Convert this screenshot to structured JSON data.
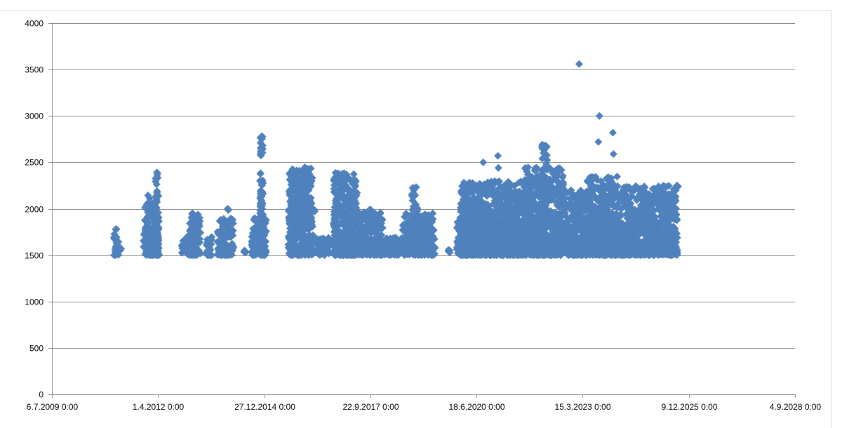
{
  "chart_data": {
    "type": "scatter",
    "title": "",
    "xlabel": "",
    "ylabel": "",
    "x_tick_labels": [
      "6.7.2009 0:00",
      "1.4.2012 0:00",
      "27.12.2014 0:00",
      "22.9.2017 0:00",
      "18.6.2020 0:00",
      "15.3.2023 0:00",
      "9.12.2025 0:00",
      "4.9.2028 0:00"
    ],
    "x_tick_dates": [
      "2009-07-06",
      "2012-04-01",
      "2014-12-27",
      "2017-09-22",
      "2020-06-18",
      "2023-03-15",
      "2025-12-09",
      "2028-09-04"
    ],
    "xlim": [
      "2009-07-06",
      "2028-09-04"
    ],
    "y_tick_labels": [
      "0",
      "500",
      "1000",
      "1500",
      "2000",
      "2500",
      "3000",
      "3500",
      "4000"
    ],
    "ylim": [
      0,
      4000
    ],
    "grid": "horizontal",
    "legend": "none",
    "marker": "diamond",
    "marker_color": "#4f81bd",
    "clusters": [
      {
        "start": "2011-02-10",
        "end": "2011-03-25",
        "min": 1500,
        "max": 1800
      },
      {
        "start": "2011-04-05",
        "end": "2011-04-20",
        "min": 1550,
        "max": 1580
      },
      {
        "start": "2011-11-15",
        "end": "2012-04-10",
        "min": 1500,
        "max": 2150
      },
      {
        "start": "2012-02-25",
        "end": "2012-04-05",
        "min": 1600,
        "max": 2400
      },
      {
        "start": "2012-11-10",
        "end": "2013-02-20",
        "min": 1500,
        "max": 1700
      },
      {
        "start": "2013-01-15",
        "end": "2013-05-10",
        "min": 1500,
        "max": 1950
      },
      {
        "start": "2013-06-25",
        "end": "2013-08-20",
        "min": 1500,
        "max": 1700
      },
      {
        "start": "2013-10-10",
        "end": "2014-03-15",
        "min": 1500,
        "max": 1900
      },
      {
        "start": "2014-01-15",
        "end": "2014-01-30",
        "min": 1800,
        "max": 2150
      },
      {
        "start": "2014-06-20",
        "end": "2014-07-05",
        "min": 1530,
        "max": 1560
      },
      {
        "start": "2014-08-25",
        "end": "2015-01-15",
        "min": 1500,
        "max": 1900
      },
      {
        "start": "2014-11-15",
        "end": "2014-12-20",
        "min": 1800,
        "max": 2780
      },
      {
        "start": "2015-08-10",
        "end": "2016-04-15",
        "min": 1500,
        "max": 2000
      },
      {
        "start": "2015-08-20",
        "end": "2016-03-25",
        "min": 1800,
        "max": 2450
      },
      {
        "start": "2016-05-10",
        "end": "2016-09-05",
        "min": 1500,
        "max": 1700
      },
      {
        "start": "2016-10-10",
        "end": "2017-05-20",
        "min": 1500,
        "max": 2400
      },
      {
        "start": "2017-05-25",
        "end": "2018-01-15",
        "min": 1500,
        "max": 2000
      },
      {
        "start": "2018-01-20",
        "end": "2018-07-15",
        "min": 1500,
        "max": 1700
      },
      {
        "start": "2018-07-20",
        "end": "2019-05-25",
        "min": 1500,
        "max": 1950
      },
      {
        "start": "2018-10-10",
        "end": "2018-12-10",
        "min": 1700,
        "max": 2260
      },
      {
        "start": "2019-09-25",
        "end": "2019-10-10",
        "min": 1530,
        "max": 1560
      },
      {
        "start": "2019-12-10",
        "end": "2020-05-25",
        "min": 1500,
        "max": 1950
      },
      {
        "start": "2020-01-15",
        "end": "2021-10-25",
        "min": 1500,
        "max": 2300
      },
      {
        "start": "2021-09-15",
        "end": "2022-09-15",
        "min": 1500,
        "max": 2450
      },
      {
        "start": "2022-02-15",
        "end": "2022-04-15",
        "min": 1900,
        "max": 2700
      },
      {
        "start": "2022-09-25",
        "end": "2023-04-25",
        "min": 1500,
        "max": 2200
      },
      {
        "start": "2023-04-25",
        "end": "2024-02-10",
        "min": 1500,
        "max": 2350
      },
      {
        "start": "2024-02-20",
        "end": "2025-08-25",
        "min": 1500,
        "max": 2250
      }
    ],
    "outliers": [
      {
        "x": "2023-02-10",
        "y": 3560
      },
      {
        "x": "2023-08-20",
        "y": 3000
      },
      {
        "x": "2023-08-10",
        "y": 2720
      },
      {
        "x": "2023-12-25",
        "y": 2820
      },
      {
        "x": "2023-12-30",
        "y": 2590
      },
      {
        "x": "2021-01-05",
        "y": 2570
      },
      {
        "x": "2020-08-20",
        "y": 2500
      },
      {
        "x": "2021-01-10",
        "y": 2440
      },
      {
        "x": "2022-01-05",
        "y": 2440
      },
      {
        "x": "2022-04-05",
        "y": 2660
      },
      {
        "x": "2014-12-05",
        "y": 2780
      },
      {
        "x": "2025-08-20",
        "y": 2250
      },
      {
        "x": "2025-08-30",
        "y": 2240
      },
      {
        "x": "2024-10-15",
        "y": 2240
      },
      {
        "x": "2016-01-25",
        "y": 2150
      },
      {
        "x": "2012-03-20",
        "y": 2390
      },
      {
        "x": "2023-11-10",
        "y": 2340
      },
      {
        "x": "2023-11-20",
        "y": 2270
      }
    ]
  }
}
